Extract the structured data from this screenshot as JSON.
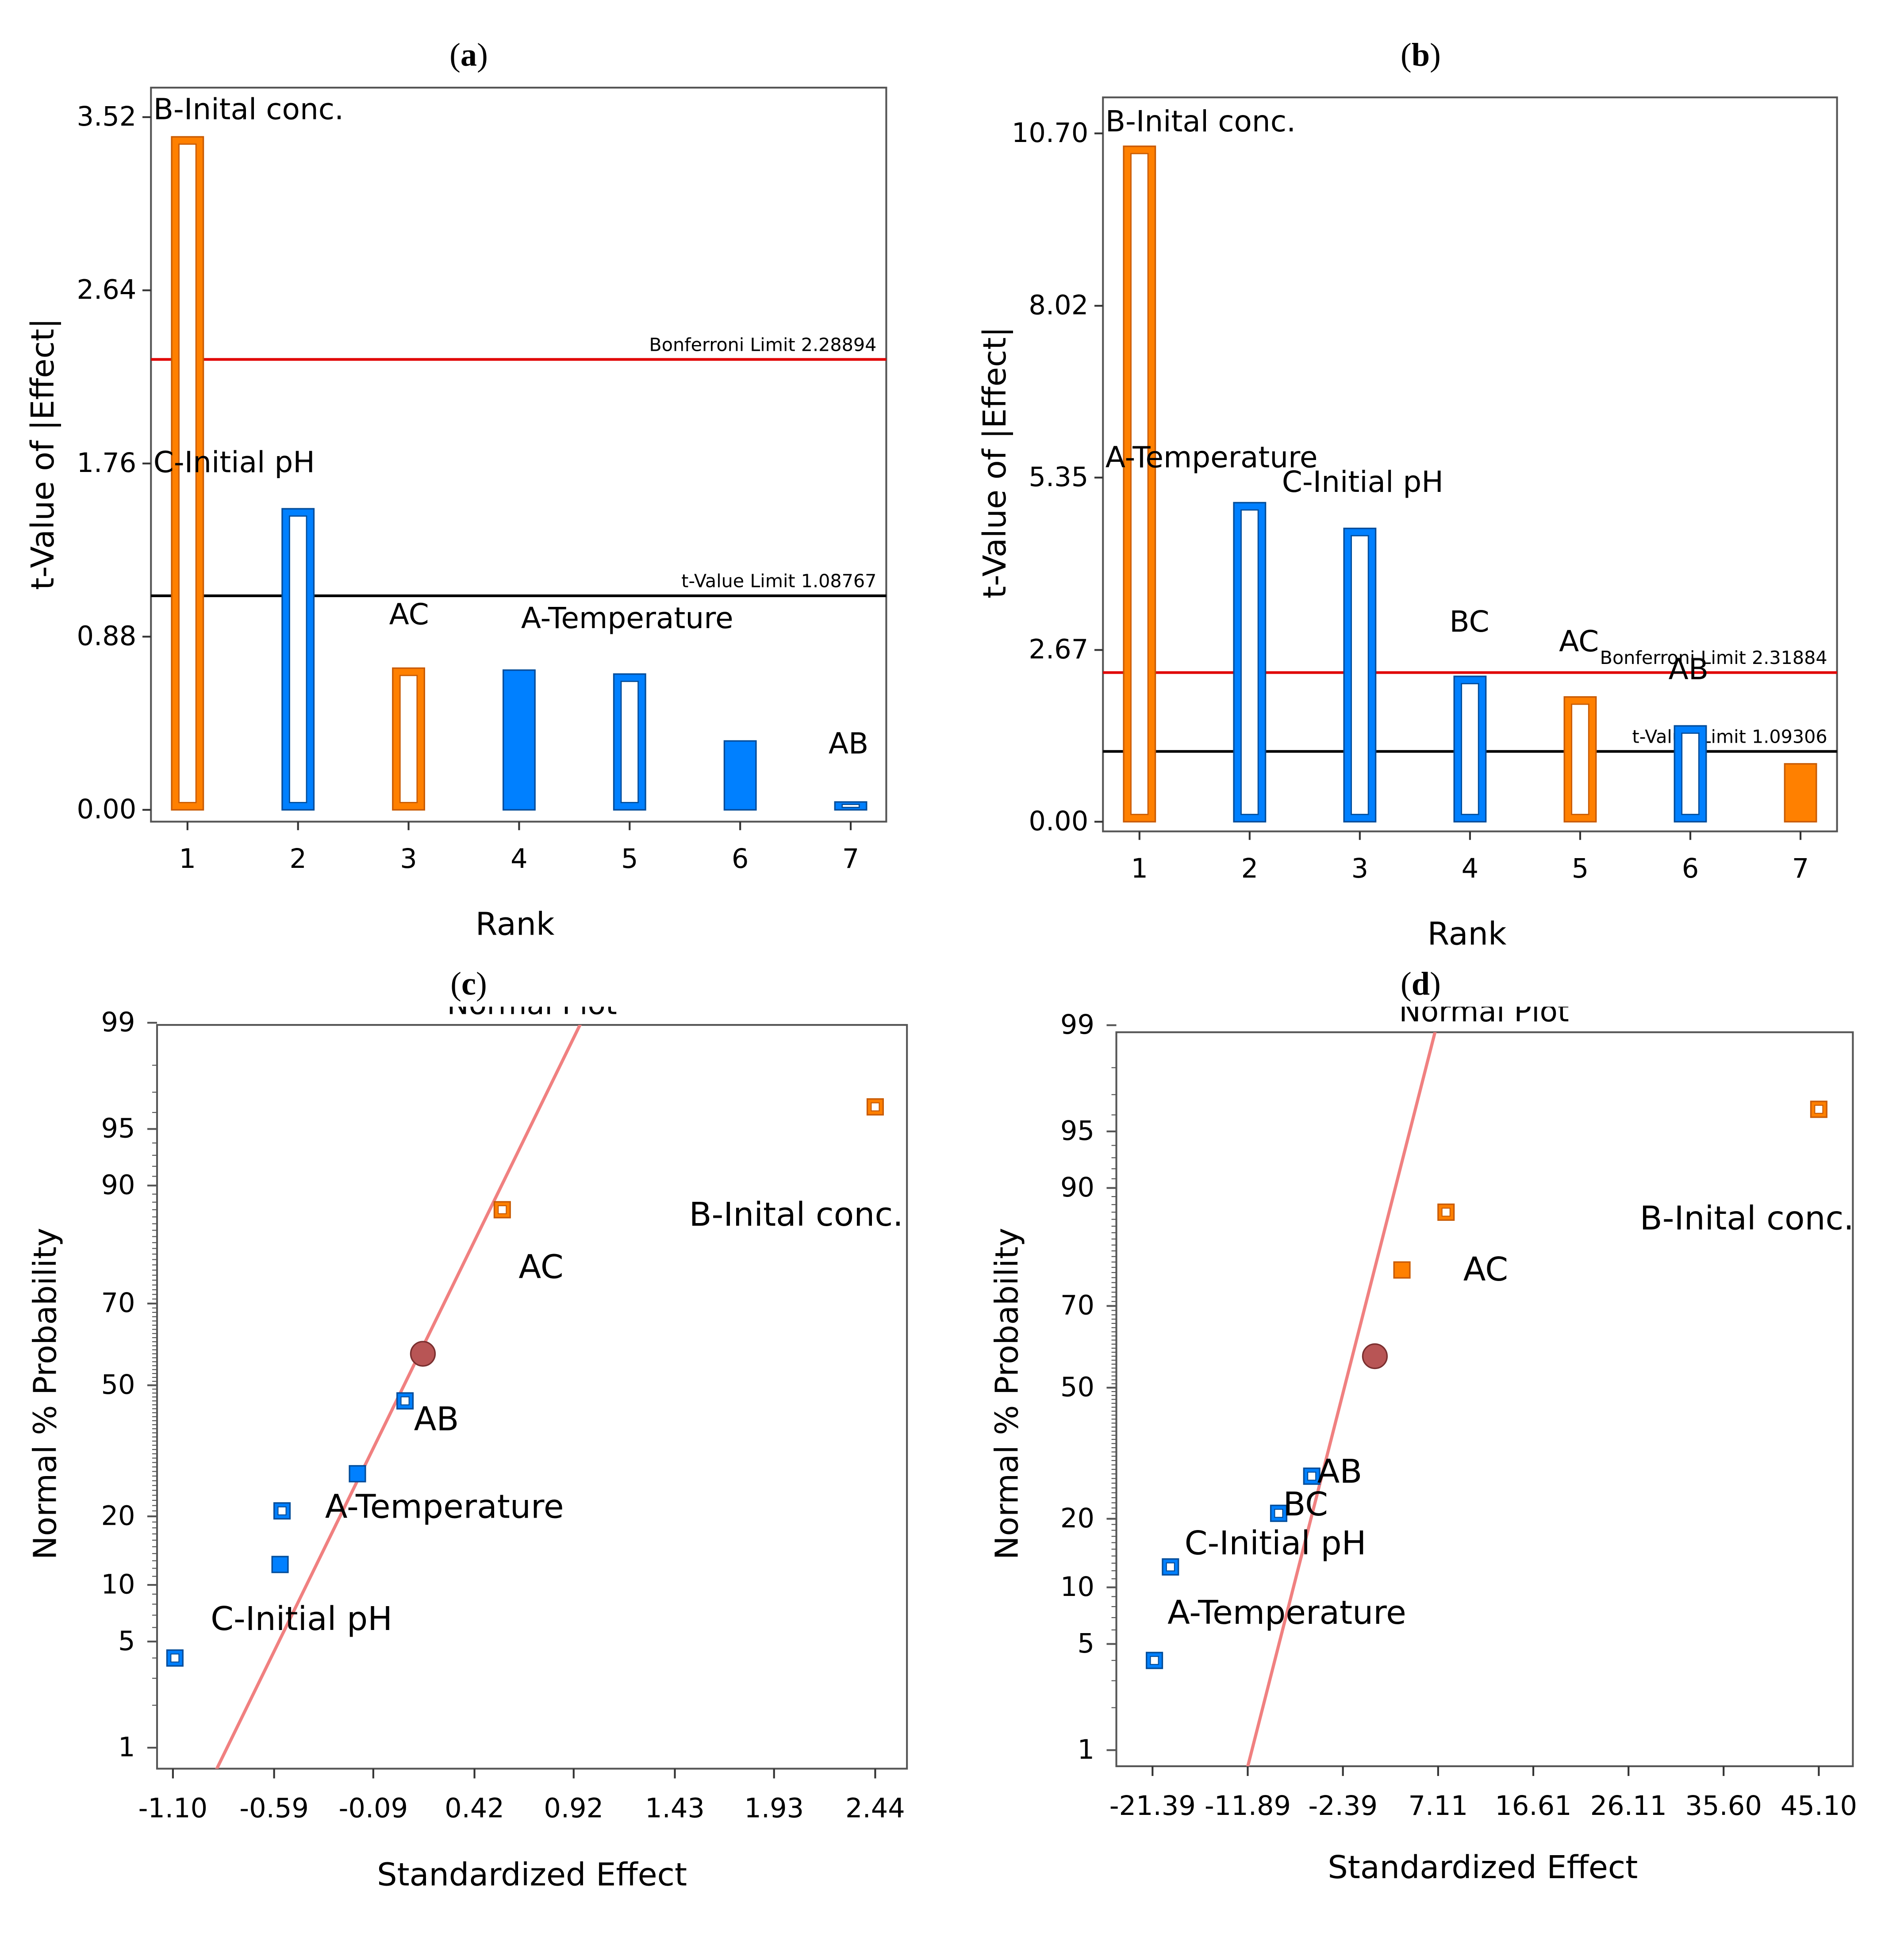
{
  "panels": {
    "a": {
      "label_open": "(",
      "letter": "a",
      "label_close": ")"
    },
    "b": {
      "label_open": "(",
      "letter": "b",
      "label_close": ")"
    },
    "c": {
      "label_open": "(",
      "letter": "c",
      "label_close": ")"
    },
    "d": {
      "label_open": "(",
      "letter": "d",
      "label_close": ")"
    }
  },
  "colors": {
    "orange": "#ff8000",
    "orange_dark": "#c85a00",
    "blue": "#0080ff",
    "blue_dark": "#004c99",
    "bonferroni": "#e00000",
    "tlimit": "#000000",
    "normal_line": "#f08080",
    "center_point": "#b85555"
  },
  "chart_data": [
    {
      "id": "a",
      "type": "bar",
      "title": "",
      "xlabel": "Rank",
      "ylabel": "t-Value of |Effect|",
      "ylim": [
        -0.06,
        3.67
      ],
      "yticks": [
        0.0,
        0.88,
        1.76,
        2.64,
        3.52
      ],
      "ytick_labels": [
        "0.00",
        "0.88",
        "1.76",
        "2.64",
        "3.52"
      ],
      "xticks": [
        1,
        2,
        3,
        4,
        5,
        6,
        7
      ],
      "xtick_labels": [
        "1",
        "2",
        "3",
        "4",
        "5",
        "6",
        "7"
      ],
      "bars": [
        {
          "rank": 1,
          "value": 3.42,
          "sign": "positive",
          "style": "hollow",
          "label": "B-Inital conc."
        },
        {
          "rank": 2,
          "value": 1.53,
          "sign": "negative",
          "style": "hollow",
          "label": "C-Initial pH"
        },
        {
          "rank": 3,
          "value": 0.72,
          "sign": "positive",
          "style": "hollow",
          "label": "AC"
        },
        {
          "rank": 4,
          "value": 0.71,
          "sign": "negative",
          "style": "filled",
          "label": ""
        },
        {
          "rank": 5,
          "value": 0.69,
          "sign": "negative",
          "style": "hollow",
          "label": "A-Temperature"
        },
        {
          "rank": 6,
          "value": 0.35,
          "sign": "negative",
          "style": "filled",
          "label": ""
        },
        {
          "rank": 7,
          "value": 0.04,
          "sign": "negative",
          "style": "hollow",
          "label": "AB"
        }
      ],
      "reference_lines": [
        {
          "name": "Bonferroni Limit",
          "value": 2.28894,
          "text": "Bonferroni Limit 2.28894"
        },
        {
          "name": "t-Value Limit",
          "value": 1.08767,
          "text": "t-Value Limit 1.08767"
        }
      ]
    },
    {
      "id": "b",
      "type": "bar",
      "title": "",
      "xlabel": "Rank",
      "ylabel": "t-Value of |Effect|",
      "ylim": [
        -0.15,
        11.26
      ],
      "yticks": [
        0.0,
        2.67,
        5.35,
        8.02,
        10.7
      ],
      "ytick_labels": [
        "0.00",
        "2.67",
        "5.35",
        "8.02",
        "10.70"
      ],
      "xticks": [
        1,
        2,
        3,
        4,
        5,
        6,
        7
      ],
      "xtick_labels": [
        "1",
        "2",
        "3",
        "4",
        "5",
        "6",
        "7"
      ],
      "bars": [
        {
          "rank": 1,
          "value": 10.5,
          "sign": "positive",
          "style": "hollow",
          "label": "B-Inital conc."
        },
        {
          "rank": 2,
          "value": 4.96,
          "sign": "negative",
          "style": "hollow",
          "label": "A-Temperature"
        },
        {
          "rank": 3,
          "value": 4.56,
          "sign": "negative",
          "style": "hollow",
          "label": "C-Initial pH"
        },
        {
          "rank": 4,
          "value": 2.26,
          "sign": "negative",
          "style": "hollow",
          "label": "BC"
        },
        {
          "rank": 5,
          "value": 1.94,
          "sign": "positive",
          "style": "hollow",
          "label": "AC"
        },
        {
          "rank": 6,
          "value": 1.49,
          "sign": "negative",
          "style": "hollow",
          "label": "AB"
        },
        {
          "rank": 7,
          "value": 0.9,
          "sign": "positive",
          "style": "filled",
          "label": ""
        }
      ],
      "reference_lines": [
        {
          "name": "Bonferroni Limit",
          "value": 2.31884,
          "text": "Bonferroni Limit 2.31884"
        },
        {
          "name": "t-Value Limit",
          "value": 1.09306,
          "text": "t-Value Limit 1.09306"
        }
      ]
    },
    {
      "id": "c",
      "type": "scatter",
      "title": "Normal Plot",
      "xlabel": "Standardized Effect",
      "ylabel": "Normal % Probability",
      "xlim": [
        -1.18,
        2.6
      ],
      "probability_scale": "normal",
      "ylim_probability": [
        0.15,
        99.9
      ],
      "xticks": [
        -1.1,
        -0.59,
        -0.09,
        0.42,
        0.92,
        1.43,
        1.93,
        2.44
      ],
      "xtick_labels": [
        "-1.10",
        "-0.59",
        "-0.09",
        "0.42",
        "0.92",
        "1.43",
        "1.93",
        "2.44"
      ],
      "yticks": [
        1,
        5,
        10,
        20,
        50,
        70,
        90,
        95,
        99
      ],
      "ytick_labels": [
        "1",
        "5",
        "10",
        "20",
        "50",
        "70",
        "90",
        "95",
        "99"
      ],
      "fit_line": [
        {
          "x": -1.12,
          "p": 0.1
        },
        {
          "x": 1.29,
          "p": 99.93
        }
      ],
      "center_point": {
        "x": 0.16,
        "p": 58
      },
      "points": [
        {
          "x": -1.09,
          "p": 4.0,
          "sign": "negative",
          "style": "hollow",
          "label": "C-Initial pH"
        },
        {
          "x": -0.56,
          "p": 12.5,
          "sign": "negative",
          "style": "filled",
          "label": ""
        },
        {
          "x": -0.55,
          "p": 21.0,
          "sign": "negative",
          "style": "hollow",
          "label": "A-Temperature"
        },
        {
          "x": -0.17,
          "p": 28.5,
          "sign": "negative",
          "style": "filled",
          "label": ""
        },
        {
          "x": 0.07,
          "p": 46.0,
          "sign": "negative",
          "style": "hollow",
          "label": "AB"
        },
        {
          "x": 0.56,
          "p": 87.0,
          "sign": "positive",
          "style": "hollow",
          "label": "AC"
        },
        {
          "x": 2.44,
          "p": 96.3,
          "sign": "positive",
          "style": "hollow",
          "label": "B-Inital conc."
        }
      ]
    },
    {
      "id": "d",
      "type": "scatter",
      "title": "Normal Plot",
      "xlabel": "Standardized Effect",
      "ylabel": "Normal % Probability",
      "xlim": [
        -25.0,
        48.5
      ],
      "probability_scale": "normal",
      "ylim_probability": [
        0.15,
        99.9
      ],
      "xticks": [
        -21.39,
        -11.89,
        -2.39,
        7.11,
        16.61,
        26.11,
        35.6,
        45.1
      ],
      "xtick_labels": [
        "-21.39",
        "-11.89",
        "-2.39",
        "7.11",
        "16.61",
        "26.11",
        "35.60",
        "45.10"
      ],
      "yticks": [
        1,
        5,
        10,
        20,
        50,
        70,
        90,
        95,
        99
      ],
      "ytick_labels": [
        "1",
        "5",
        "10",
        "20",
        "50",
        "70",
        "90",
        "95",
        "99"
      ],
      "fit_line": [
        {
          "x": -14.5,
          "p": 0.1
        },
        {
          "x": 10.8,
          "p": 99.95
        }
      ],
      "center_point": {
        "x": 0.8,
        "p": 58
      },
      "points": [
        {
          "x": -21.2,
          "p": 4.0,
          "sign": "negative",
          "style": "hollow",
          "label": "A-Temperature"
        },
        {
          "x": -19.6,
          "p": 12.5,
          "sign": "negative",
          "style": "hollow",
          "label": "C-Initial pH"
        },
        {
          "x": -8.8,
          "p": 21.0,
          "sign": "negative",
          "style": "hollow",
          "label": "BC"
        },
        {
          "x": -5.5,
          "p": 28.5,
          "sign": "negative",
          "style": "hollow",
          "label": "AB"
        },
        {
          "x": 3.5,
          "p": 77.5,
          "sign": "positive",
          "style": "filled",
          "label": ""
        },
        {
          "x": 7.9,
          "p": 87.0,
          "sign": "positive",
          "style": "hollow",
          "label": "AC"
        },
        {
          "x": 45.1,
          "p": 96.3,
          "sign": "positive",
          "style": "hollow",
          "label": "B-Inital conc."
        }
      ]
    }
  ]
}
